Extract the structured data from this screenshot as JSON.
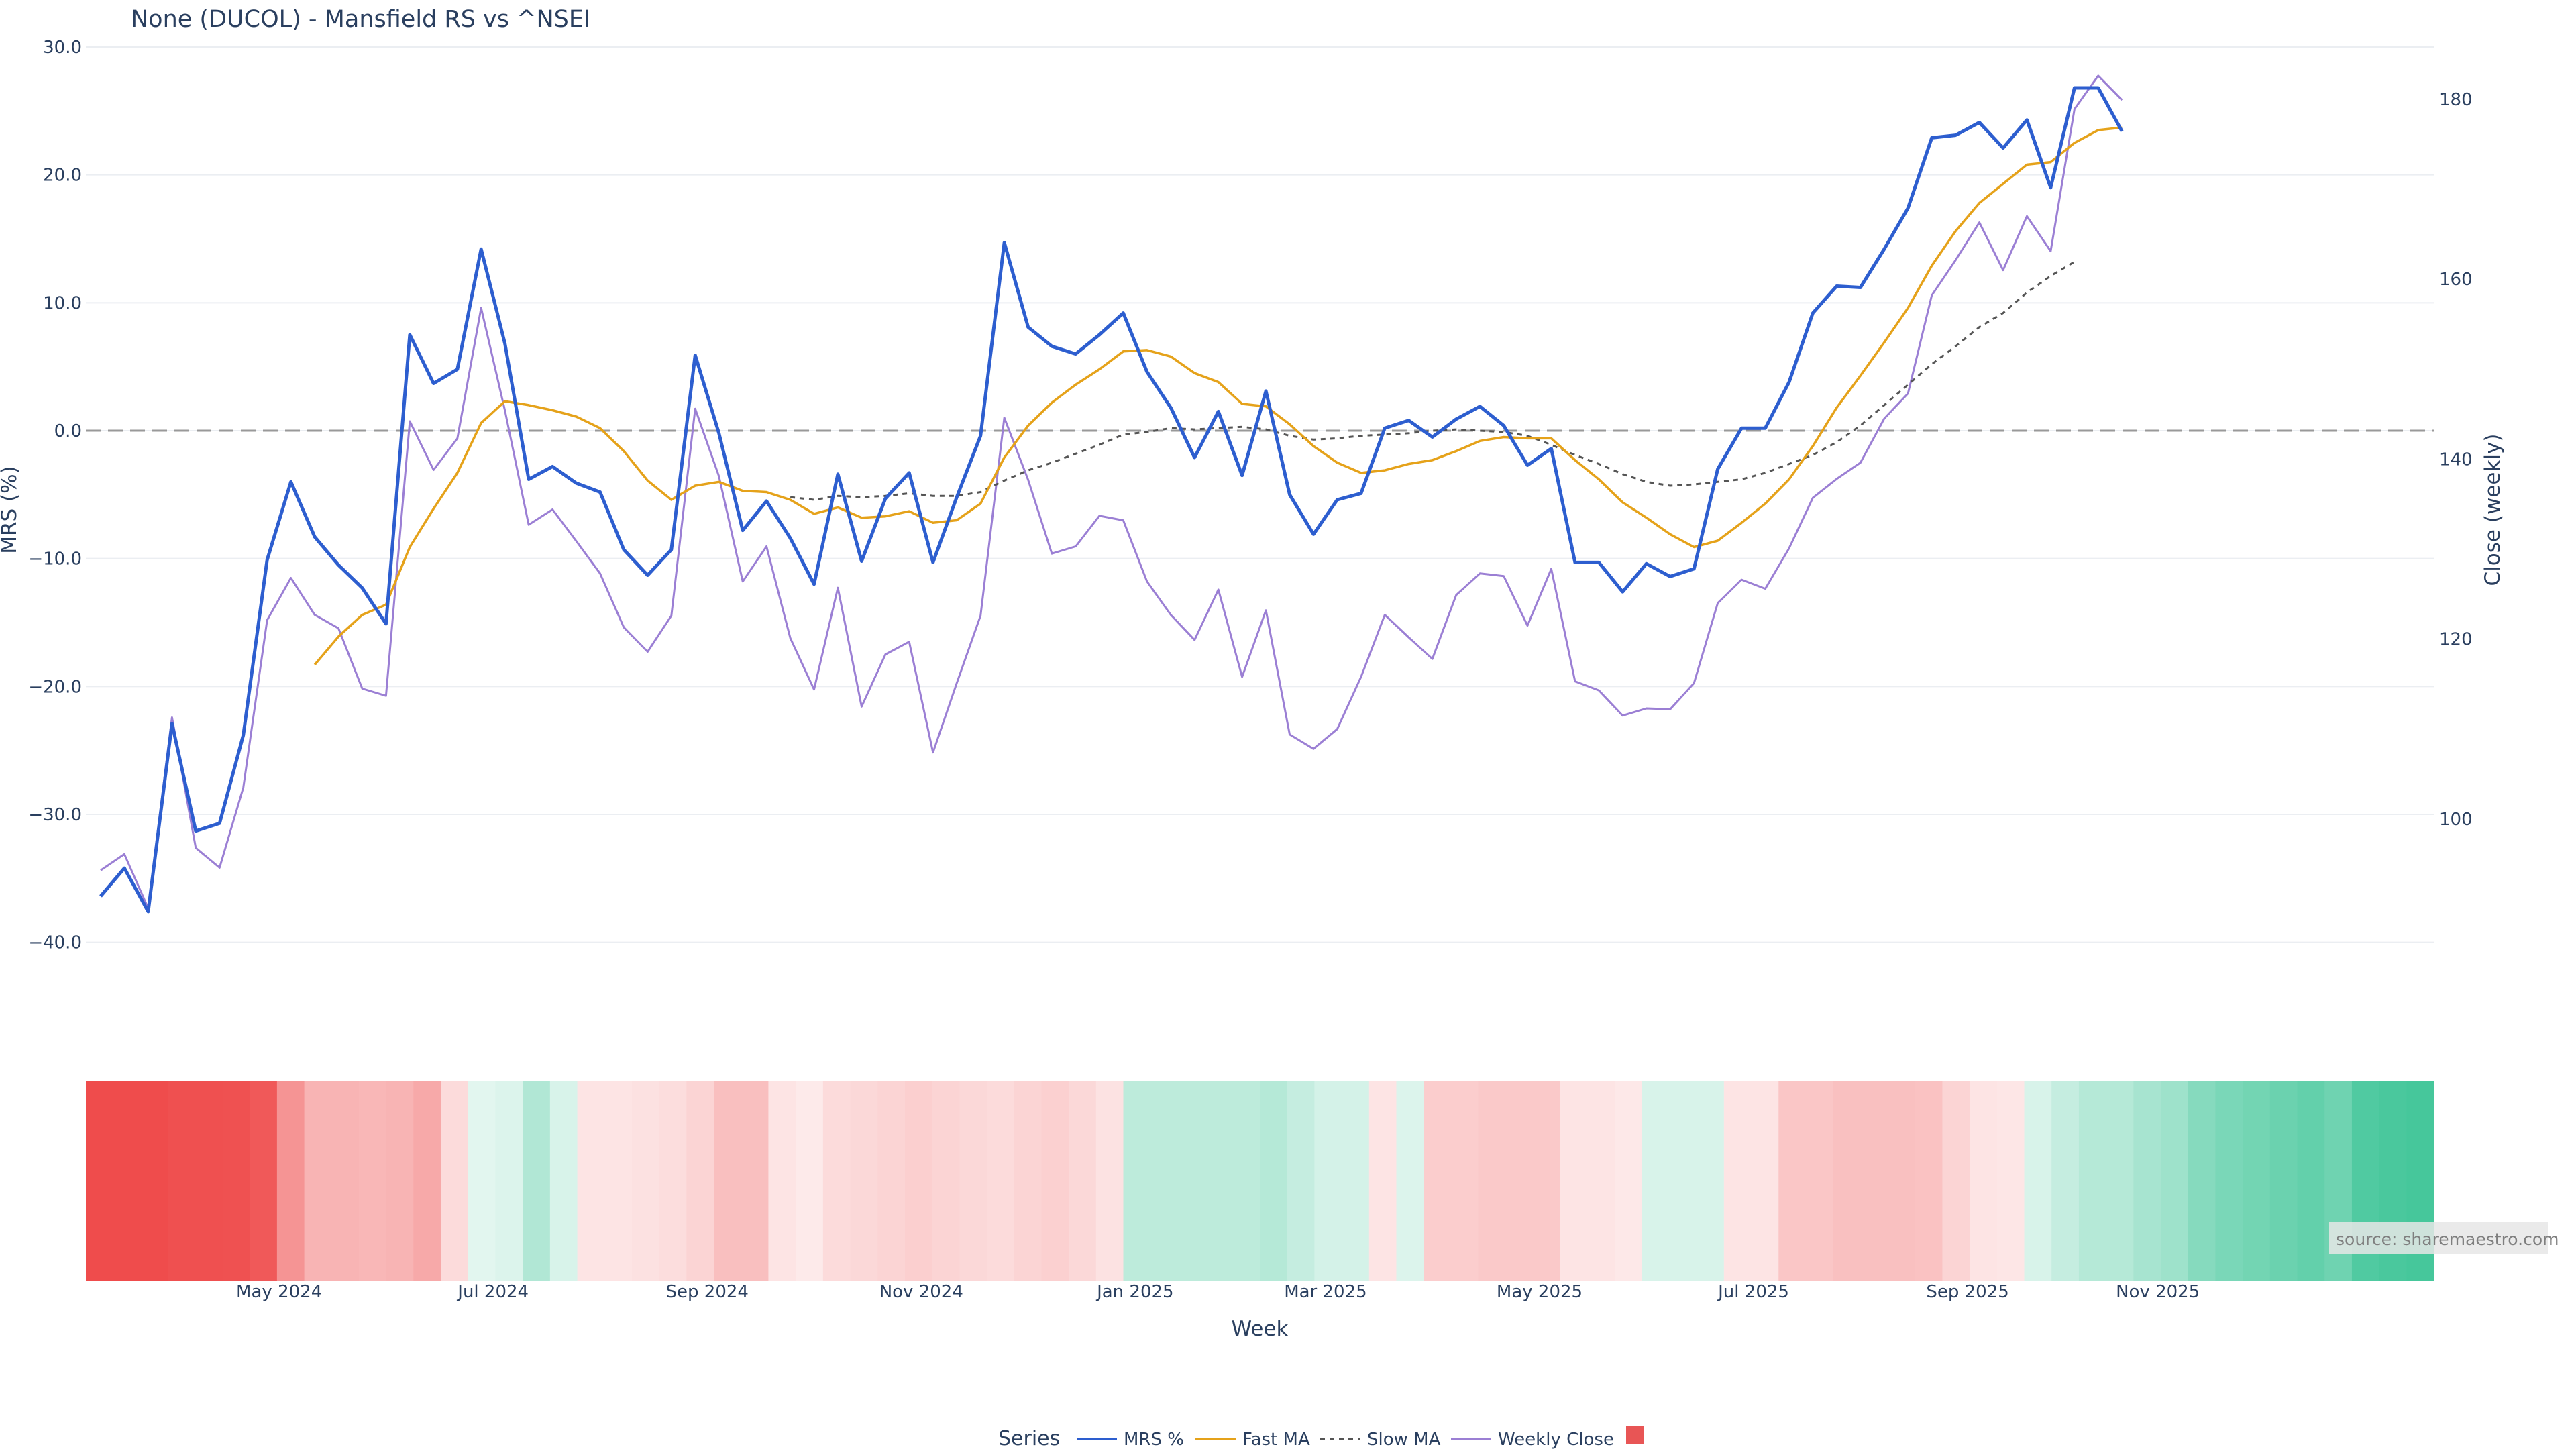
{
  "chart_data": {
    "type": "line",
    "title": "None (DUCOL) - Mansfield RS vs ^NSEI",
    "xlabel": "Week",
    "ylabel": "MRS (%)",
    "y2label": "Close (weekly)",
    "ylim": [
      -45,
      30
    ],
    "y2lim": [
      79.2,
      185.8
    ],
    "yticks": [
      "30.0",
      "20.0",
      "10.0",
      "0.0",
      "−10.0",
      "−20.0",
      "−30.0",
      "−40.0"
    ],
    "ytick_values": [
      30,
      20,
      10,
      0,
      -10,
      -20,
      -30,
      -40
    ],
    "y2ticks": [
      "180",
      "160",
      "140",
      "120",
      "100"
    ],
    "y2tick_values": [
      180,
      160,
      140,
      120,
      100
    ],
    "xticks": [
      "May 2024",
      "Jul 2024",
      "Sep 2024",
      "Nov 2024",
      "Jan 2025",
      "Mar 2025",
      "May 2025",
      "Jul 2025",
      "Sep 2025",
      "Nov 2025"
    ],
    "xtick_week_index": [
      7,
      16,
      25,
      34,
      43,
      51,
      60,
      69,
      78,
      86
    ],
    "x_weeks": 87,
    "zero_line": 0,
    "grid": true,
    "legend_title": "Series",
    "legend_position": "bottom-center",
    "source": "source: sharemaestro.com",
    "colors": {
      "mrs": "#2d5ecf",
      "fast_ma": "#e5a21a",
      "slow_ma": "#555555",
      "weekly_close": "#9b7fd4",
      "zero_line": "#999999",
      "grid": "#ebeef2",
      "heat_negative": "#ef4c4c",
      "heat_positive": "#3cc496",
      "legend_marker": "#e85555"
    },
    "series": [
      {
        "name": "MRS %",
        "axis": "y",
        "values": [
          -36.4,
          -34.2,
          -37.6,
          -22.9,
          -31.3,
          -30.7,
          -23.8,
          -10.1,
          -4.0,
          -8.3,
          -10.5,
          -12.3,
          -15.1,
          7.5,
          3.7,
          4.8,
          14.2,
          6.8,
          -3.8,
          -2.8,
          -4.1,
          -4.8,
          -9.3,
          -11.3,
          -9.3,
          5.9,
          -0.2,
          -7.8,
          -5.5,
          -8.4,
          -12.0,
          -3.4,
          -10.2,
          -5.3,
          -3.3,
          -10.3,
          -5.2,
          -0.4,
          14.7,
          8.1,
          6.6,
          6.0,
          7.5,
          9.2,
          4.6,
          1.8,
          -2.1,
          1.5,
          -3.5,
          3.1,
          -5.0,
          -8.1,
          -5.4,
          -4.9,
          0.2,
          0.8,
          -0.5,
          0.9,
          1.9,
          0.4,
          -2.7,
          -1.4,
          -10.3,
          -10.3,
          -12.6,
          -10.4,
          -11.4,
          -10.8,
          -3.0,
          0.2,
          0.2,
          3.8,
          9.2,
          11.3,
          11.2,
          14.2,
          17.4,
          22.9,
          23.1,
          24.1,
          22.1,
          24.3,
          19.0,
          26.8,
          26.8,
          23.4
        ]
      },
      {
        "name": "Fast MA",
        "axis": "y",
        "start_index": 9,
        "values": [
          -18.3,
          -16.1,
          -14.4,
          -13.6,
          -9.1,
          -6.1,
          -3.3,
          0.6,
          2.3,
          2.0,
          1.6,
          1.1,
          0.2,
          -1.6,
          -3.9,
          -5.4,
          -4.3,
          -4.0,
          -4.7,
          -4.8,
          -5.4,
          -6.5,
          -6.0,
          -6.8,
          -6.7,
          -6.3,
          -7.2,
          -7.0,
          -5.7,
          -2.1,
          0.4,
          2.2,
          3.6,
          4.8,
          6.2,
          6.3,
          5.8,
          4.5,
          3.8,
          2.1,
          1.9,
          0.5,
          -1.2,
          -2.5,
          -3.3,
          -3.1,
          -2.6,
          -2.3,
          -1.6,
          -0.8,
          -0.5,
          -0.6,
          -0.6,
          -2.3,
          -3.8,
          -5.6,
          -6.8,
          -8.1,
          -9.1,
          -8.6,
          -7.2,
          -5.7,
          -3.8,
          -1.2,
          1.8,
          4.3,
          6.9,
          9.6,
          12.9,
          15.6,
          17.8,
          19.3,
          20.8,
          21.0,
          22.5,
          23.5,
          23.7
        ]
      },
      {
        "name": "Slow MA",
        "axis": "y",
        "start_index": 29,
        "values": [
          -5.2,
          -5.4,
          -5.1,
          -5.2,
          -5.1,
          -4.9,
          -5.1,
          -5.1,
          -4.8,
          -3.9,
          -3.1,
          -2.5,
          -1.8,
          -1.1,
          -0.3,
          -0.1,
          0.2,
          0.1,
          0.2,
          0.3,
          0.1,
          -0.4,
          -0.7,
          -0.6,
          -0.4,
          -0.3,
          -0.2,
          0.0,
          0.1,
          0.0,
          -0.1,
          -0.4,
          -1.1,
          -1.9,
          -2.6,
          -3.4,
          -4.0,
          -4.3,
          -4.2,
          -4.0,
          -3.8,
          -3.3,
          -2.6,
          -1.9,
          -0.9,
          0.4,
          2.0,
          3.6,
          5.2,
          6.6,
          8.1,
          9.2,
          10.8,
          12.1,
          13.2
        ]
      },
      {
        "name": "Weekly Close",
        "axis": "y2",
        "values": [
          94.3,
          96.1,
          90.1,
          111.3,
          96.8,
          94.6,
          103.5,
          122.1,
          126.8,
          122.7,
          121.2,
          114.5,
          113.7,
          144.2,
          138.8,
          142.3,
          156.8,
          145.4,
          132.7,
          134.4,
          130.9,
          127.3,
          121.3,
          118.6,
          122.6,
          145.6,
          138.1,
          126.4,
          130.3,
          120.1,
          114.4,
          125.7,
          112.5,
          118.3,
          119.7,
          107.4,
          115.1,
          122.6,
          144.6,
          137.7,
          129.5,
          130.3,
          133.7,
          133.2,
          126.4,
          122.7,
          119.9,
          125.5,
          115.8,
          123.2,
          109.4,
          107.8,
          110.0,
          115.8,
          122.7,
          120.2,
          117.8,
          124.9,
          127.3,
          127.0,
          121.5,
          127.8,
          115.3,
          114.3,
          111.5,
          112.3,
          112.2,
          115.1,
          124.0,
          126.6,
          125.6,
          130.1,
          135.7,
          137.8,
          139.6,
          144.5,
          147.3,
          158.2,
          162.1,
          166.3,
          161.0,
          167.0,
          163.1,
          178.9,
          182.6,
          179.9
        ]
      }
    ],
    "heat_strip": [
      -1.0,
      -1.0,
      -1.0,
      -0.98,
      -0.98,
      -0.97,
      -0.93,
      -0.6,
      -0.42,
      -0.42,
      -0.4,
      -0.42,
      -0.48,
      -0.2,
      0.15,
      0.18,
      0.4,
      0.2,
      -0.15,
      -0.15,
      -0.17,
      -0.19,
      -0.24,
      -0.36,
      -0.36,
      -0.15,
      -0.12,
      -0.2,
      -0.22,
      -0.24,
      -0.27,
      -0.24,
      -0.22,
      -0.2,
      -0.24,
      -0.26,
      -0.22,
      -0.16,
      0.34,
      0.34,
      0.34,
      0.34,
      0.34,
      0.38,
      0.3,
      0.22,
      0.22,
      -0.15,
      0.18,
      -0.28,
      -0.28,
      -0.3,
      -0.3,
      -0.3,
      -0.15,
      -0.15,
      -0.13,
      0.2,
      0.2,
      0.2,
      -0.15,
      -0.15,
      -0.32,
      -0.32,
      -0.35,
      -0.35,
      -0.35,
      -0.34,
      -0.24,
      -0.15,
      -0.14,
      0.2,
      0.3,
      0.38,
      0.38,
      0.45,
      0.5,
      0.62,
      0.68,
      0.72,
      0.76,
      0.8,
      0.74,
      0.9,
      0.93,
      0.95
    ]
  }
}
